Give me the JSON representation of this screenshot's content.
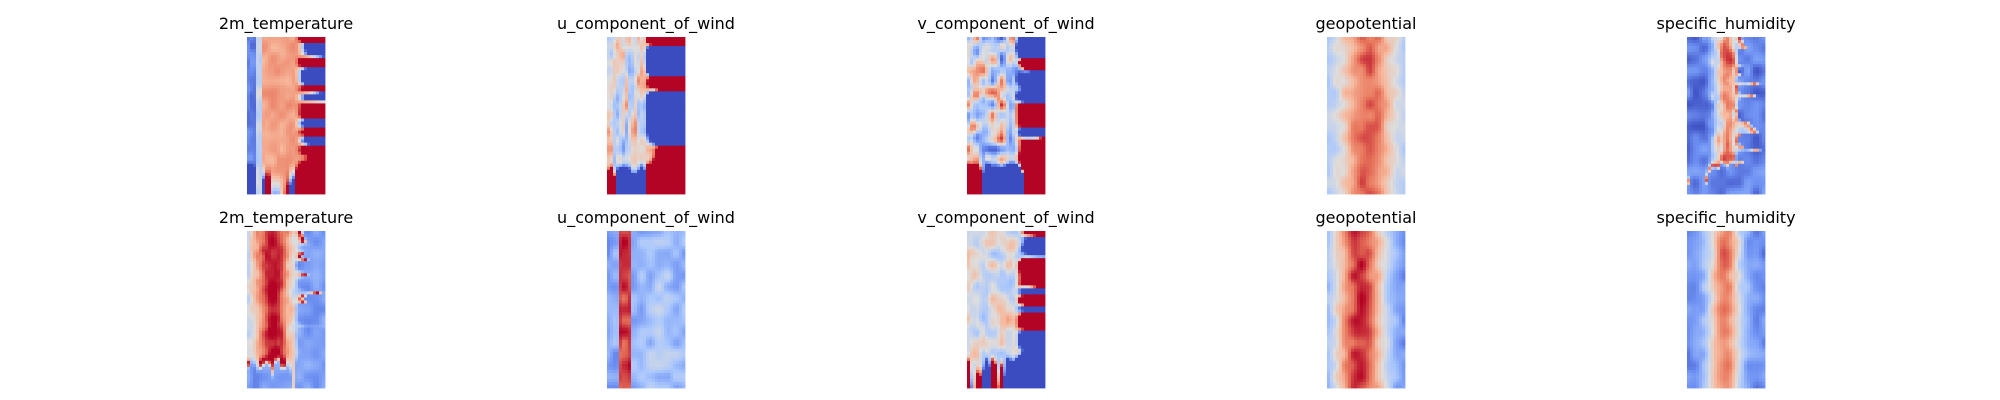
{
  "chart_data": {
    "type": "heatmap",
    "layout": {
      "rows": 2,
      "cols": 5
    },
    "colormap": "coolwarm",
    "colormap_stops": [
      "#3b4cc0",
      "#6f92f3",
      "#aac7fd",
      "#dddddd",
      "#f7b89c",
      "#e7745b",
      "#b40426"
    ],
    "axes": "off",
    "panels": [
      {
        "title": "2m_temperature",
        "pattern": "band_left_low",
        "seed": 11
      },
      {
        "title": "u_component_of_wind",
        "pattern": "streaks",
        "seed": 12
      },
      {
        "title": "v_component_of_wind",
        "pattern": "noise",
        "seed": 13
      },
      {
        "title": "geopotential",
        "pattern": "band_wide",
        "seed": 14
      },
      {
        "title": "specific_humidity",
        "pattern": "band_narrow",
        "seed": 15
      },
      {
        "title": "2m_temperature",
        "pattern": "band_center",
        "seed": 21
      },
      {
        "title": "u_component_of_wind",
        "pattern": "jet_left",
        "seed": 22
      },
      {
        "title": "v_component_of_wind",
        "pattern": "noise_light",
        "seed": 23
      },
      {
        "title": "geopotential",
        "pattern": "band_wide_dark",
        "seed": 24
      },
      {
        "title": "specific_humidity",
        "pattern": "band_mid",
        "seed": 25
      }
    ]
  }
}
